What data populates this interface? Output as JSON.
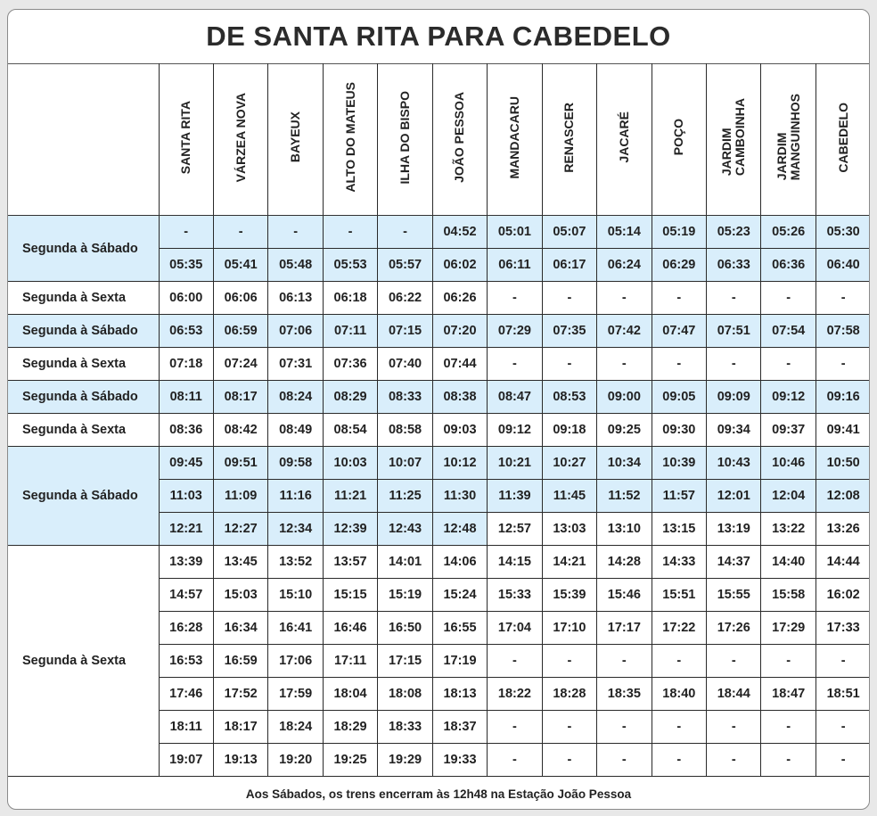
{
  "title": "DE SANTA RITA PARA  CABEDELO",
  "stations": [
    "SANTA RITA",
    "VÁRZEA NOVA",
    "BAYEUX",
    "ALTO DO MATEUS",
    "ILHA DO BISPO",
    "JOÃO PESSOA",
    "MANDACARU",
    "RENASCER",
    "JACARÉ",
    "POÇO",
    "JARDIM\nCAMBOINHA",
    "JARDIM\nMANGUINHOS",
    "CABEDELO"
  ],
  "groups": [
    {
      "label": "Segunda à Sábado",
      "shade": "full",
      "rows": [
        [
          "-",
          "-",
          "-",
          "-",
          "-",
          "04:52",
          "05:01",
          "05:07",
          "05:14",
          "05:19",
          "05:23",
          "05:26",
          "05:30"
        ],
        [
          "05:35",
          "05:41",
          "05:48",
          "05:53",
          "05:57",
          "06:02",
          "06:11",
          "06:17",
          "06:24",
          "06:29",
          "06:33",
          "06:36",
          "06:40"
        ]
      ]
    },
    {
      "label": "Segunda à Sexta",
      "shade": "none",
      "rows": [
        [
          "06:00",
          "06:06",
          "06:13",
          "06:18",
          "06:22",
          "06:26",
          "-",
          "-",
          "-",
          "-",
          "-",
          "-",
          "-"
        ]
      ]
    },
    {
      "label": "Segunda à Sábado",
      "shade": "full",
      "rows": [
        [
          "06:53",
          "06:59",
          "07:06",
          "07:11",
          "07:15",
          "07:20",
          "07:29",
          "07:35",
          "07:42",
          "07:47",
          "07:51",
          "07:54",
          "07:58"
        ]
      ]
    },
    {
      "label": "Segunda à Sexta",
      "shade": "none",
      "rows": [
        [
          "07:18",
          "07:24",
          "07:31",
          "07:36",
          "07:40",
          "07:44",
          "-",
          "-",
          "-",
          "-",
          "-",
          "-",
          "-"
        ]
      ]
    },
    {
      "label": "Segunda à Sábado",
      "shade": "full",
      "rows": [
        [
          "08:11",
          "08:17",
          "08:24",
          "08:29",
          "08:33",
          "08:38",
          "08:47",
          "08:53",
          "09:00",
          "09:05",
          "09:09",
          "09:12",
          "09:16"
        ]
      ]
    },
    {
      "label": "Segunda à Sexta",
      "shade": "none",
      "rows": [
        [
          "08:36",
          "08:42",
          "08:49",
          "08:54",
          "08:58",
          "09:03",
          "09:12",
          "09:18",
          "09:25",
          "09:30",
          "09:34",
          "09:37",
          "09:41"
        ]
      ]
    },
    {
      "label": "Segunda à Sábado",
      "shade": "partial",
      "rows": [
        [
          "09:45",
          "09:51",
          "09:58",
          "10:03",
          "10:07",
          "10:12",
          "10:21",
          "10:27",
          "10:34",
          "10:39",
          "10:43",
          "10:46",
          "10:50"
        ],
        [
          "11:03",
          "11:09",
          "11:16",
          "11:21",
          "11:25",
          "11:30",
          "11:39",
          "11:45",
          "11:52",
          "11:57",
          "12:01",
          "12:04",
          "12:08"
        ],
        [
          "12:21",
          "12:27",
          "12:34",
          "12:39",
          "12:43",
          "12:48",
          "12:57",
          "13:03",
          "13:10",
          "13:15",
          "13:19",
          "13:22",
          "13:26"
        ]
      ]
    },
    {
      "label": "Segunda à Sexta",
      "shade": "none",
      "rows": [
        [
          "13:39",
          "13:45",
          "13:52",
          "13:57",
          "14:01",
          "14:06",
          "14:15",
          "14:21",
          "14:28",
          "14:33",
          "14:37",
          "14:40",
          "14:44"
        ],
        [
          "14:57",
          "15:03",
          "15:10",
          "15:15",
          "15:19",
          "15:24",
          "15:33",
          "15:39",
          "15:46",
          "15:51",
          "15:55",
          "15:58",
          "16:02"
        ],
        [
          "16:28",
          "16:34",
          "16:41",
          "16:46",
          "16:50",
          "16:55",
          "17:04",
          "17:10",
          "17:17",
          "17:22",
          "17:26",
          "17:29",
          "17:33"
        ],
        [
          "16:53",
          "16:59",
          "17:06",
          "17:11",
          "17:15",
          "17:19",
          "-",
          "-",
          "-",
          "-",
          "-",
          "-",
          "-"
        ],
        [
          "17:46",
          "17:52",
          "17:59",
          "18:04",
          "18:08",
          "18:13",
          "18:22",
          "18:28",
          "18:35",
          "18:40",
          "18:44",
          "18:47",
          "18:51"
        ],
        [
          "18:11",
          "18:17",
          "18:24",
          "18:29",
          "18:33",
          "18:37",
          "-",
          "-",
          "-",
          "-",
          "-",
          "-",
          "-"
        ],
        [
          "19:07",
          "19:13",
          "19:20",
          "19:25",
          "19:29",
          "19:33",
          "-",
          "-",
          "-",
          "-",
          "-",
          "-",
          "-"
        ]
      ]
    }
  ],
  "footnote": "Aos Sábados, os trens encerram às 12h48 na Estação João Pessoa",
  "colors": {
    "highlight": "#d9eefb",
    "border": "#2a2a2a",
    "text": "#222222"
  }
}
